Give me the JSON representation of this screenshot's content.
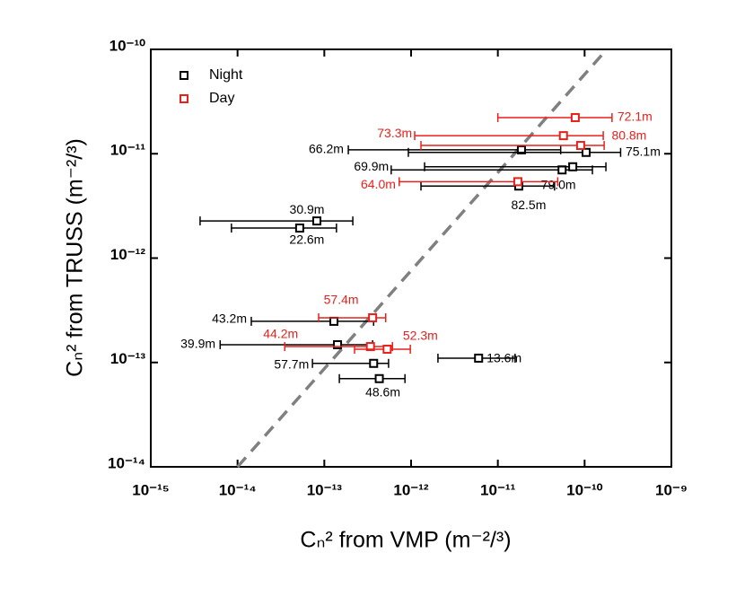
{
  "chart_data": {
    "type": "scatter",
    "xlabel": "Cₙ² from VMP (m⁻²/³)",
    "ylabel": "Cₙ² from TRUSS (m⁻²/³)",
    "xscale": "log",
    "yscale": "log",
    "xlim": [
      1e-15,
      1e-09
    ],
    "ylim": [
      1e-14,
      1e-10
    ],
    "xticks": [
      {
        "value": 1e-15,
        "label": "10⁻¹⁵"
      },
      {
        "value": 1e-14,
        "label": "10⁻¹⁴"
      },
      {
        "value": 1e-13,
        "label": "10⁻¹³"
      },
      {
        "value": 1e-12,
        "label": "10⁻¹²"
      },
      {
        "value": 1e-11,
        "label": "10⁻¹¹"
      },
      {
        "value": 1e-10,
        "label": "10⁻¹⁰"
      },
      {
        "value": 1e-09,
        "label": "10⁻⁹"
      }
    ],
    "yticks": [
      {
        "value": 1e-14,
        "label": "10⁻¹⁴"
      },
      {
        "value": 1e-13,
        "label": "10⁻¹³"
      },
      {
        "value": 1e-12,
        "label": "10⁻¹²"
      },
      {
        "value": 1e-11,
        "label": "10⁻¹¹"
      },
      {
        "value": 1e-10,
        "label": "10⁻¹⁰"
      }
    ],
    "legend": "upper left",
    "reference_line": {
      "x": [
        1e-14,
        1.8e-10
      ],
      "y": [
        1e-14,
        1e-10
      ],
      "color": "#808080",
      "dashed": true
    },
    "series": [
      {
        "name": "Night",
        "color": "#000000",
        "labels": [
          "66.2m",
          "75.1m",
          "69.9m",
          "79.0m",
          "82.5m",
          "30.9m",
          "22.6m",
          "43.2m",
          "39.9m",
          "57.7m",
          "48.6m",
          "13.6m"
        ],
        "x": [
          1.87e-11,
          1.04e-10,
          5.5e-11,
          7.3e-11,
          1.74e-11,
          8.2e-14,
          5.2e-14,
          1.29e-13,
          1.42e-13,
          3.7e-13,
          4.3e-13,
          6e-12
        ],
        "y": [
          1.09e-11,
          1.03e-11,
          7e-12,
          7.5e-12,
          4.9e-12,
          2.27e-12,
          1.94e-12,
          2.48e-13,
          1.48e-13,
          9.8e-14,
          7e-14,
          1.1e-13
        ],
        "x_low": [
          1.89e-13,
          9.3e-13,
          5.9e-13,
          1.43e-12,
          1.3e-12,
          3.7e-15,
          8.5e-15,
          1.44e-14,
          6.3e-15,
          7.3e-14,
          1.49e-13,
          2.04e-12
        ],
        "x_high": [
          5.3e-11,
          2.6e-10,
          1.23e-10,
          1.76e-10,
          4.5e-11,
          2.13e-13,
          1.38e-13,
          3.7e-13,
          3.6e-13,
          5.5e-13,
          8.5e-13,
          1.58e-11
        ]
      },
      {
        "name": "Day",
        "color": "#e8211c",
        "labels": [
          "72.1m",
          "73.3m",
          "80.8m",
          "64.0m",
          "57.4m",
          "44.2m",
          "52.3m"
        ],
        "x": [
          7.8e-11,
          5.7e-11,
          9e-11,
          1.7e-11,
          3.6e-13,
          3.4e-13,
          5.3e-13
        ],
        "y": [
          2.22e-11,
          1.49e-11,
          1.2e-11,
          5.4e-12,
          2.68e-13,
          1.42e-13,
          1.34e-13
        ],
        "x_low": [
          1e-11,
          1.1e-12,
          1.3e-12,
          7.3e-13,
          8.6e-14,
          3.5e-14,
          2.23e-13
        ],
        "x_high": [
          2.07e-10,
          1.64e-10,
          1.68e-10,
          4.9e-11,
          5.1e-13,
          6.1e-13,
          9.8e-13
        ]
      }
    ]
  }
}
